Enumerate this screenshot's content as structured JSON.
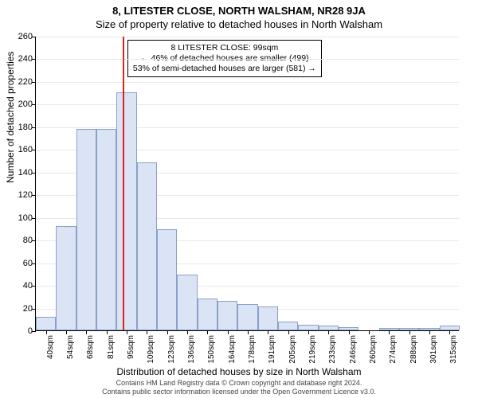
{
  "title_main": "8, LITESTER CLOSE, NORTH WALSHAM, NR28 9JA",
  "title_sub": "Size of property relative to detached houses in North Walsham",
  "ylabel": "Number of detached properties",
  "xlabel": "Distribution of detached houses by size in North Walsham",
  "chart": {
    "type": "histogram",
    "ymax": 260,
    "ytick_step": 20,
    "bar_fill": "#dbe4f5",
    "bar_border": "#8aa0c8",
    "grid_color": "#e8e8e8",
    "marker_color": "#d22",
    "marker_x_index": 4.3,
    "categories": [
      "40sqm",
      "54sqm",
      "68sqm",
      "81sqm",
      "95sqm",
      "109sqm",
      "123sqm",
      "136sqm",
      "150sqm",
      "164sqm",
      "178sqm",
      "191sqm",
      "205sqm",
      "219sqm",
      "233sqm",
      "246sqm",
      "260sqm",
      "274sqm",
      "288sqm",
      "301sqm",
      "315sqm"
    ],
    "values": [
      12,
      92,
      178,
      178,
      210,
      148,
      89,
      49,
      28,
      26,
      23,
      21,
      8,
      5,
      4,
      3,
      0,
      2,
      2,
      2,
      4
    ]
  },
  "annotation": {
    "line1": "8 LITESTER CLOSE: 99sqm",
    "line2": "← 46% of detached houses are smaller (499)",
    "line3": "53% of semi-detached houses are larger (581) →"
  },
  "footer": {
    "line1": "Contains HM Land Registry data © Crown copyright and database right 2024.",
    "line2": "Contains public sector information licensed under the Open Government Licence v3.0."
  }
}
